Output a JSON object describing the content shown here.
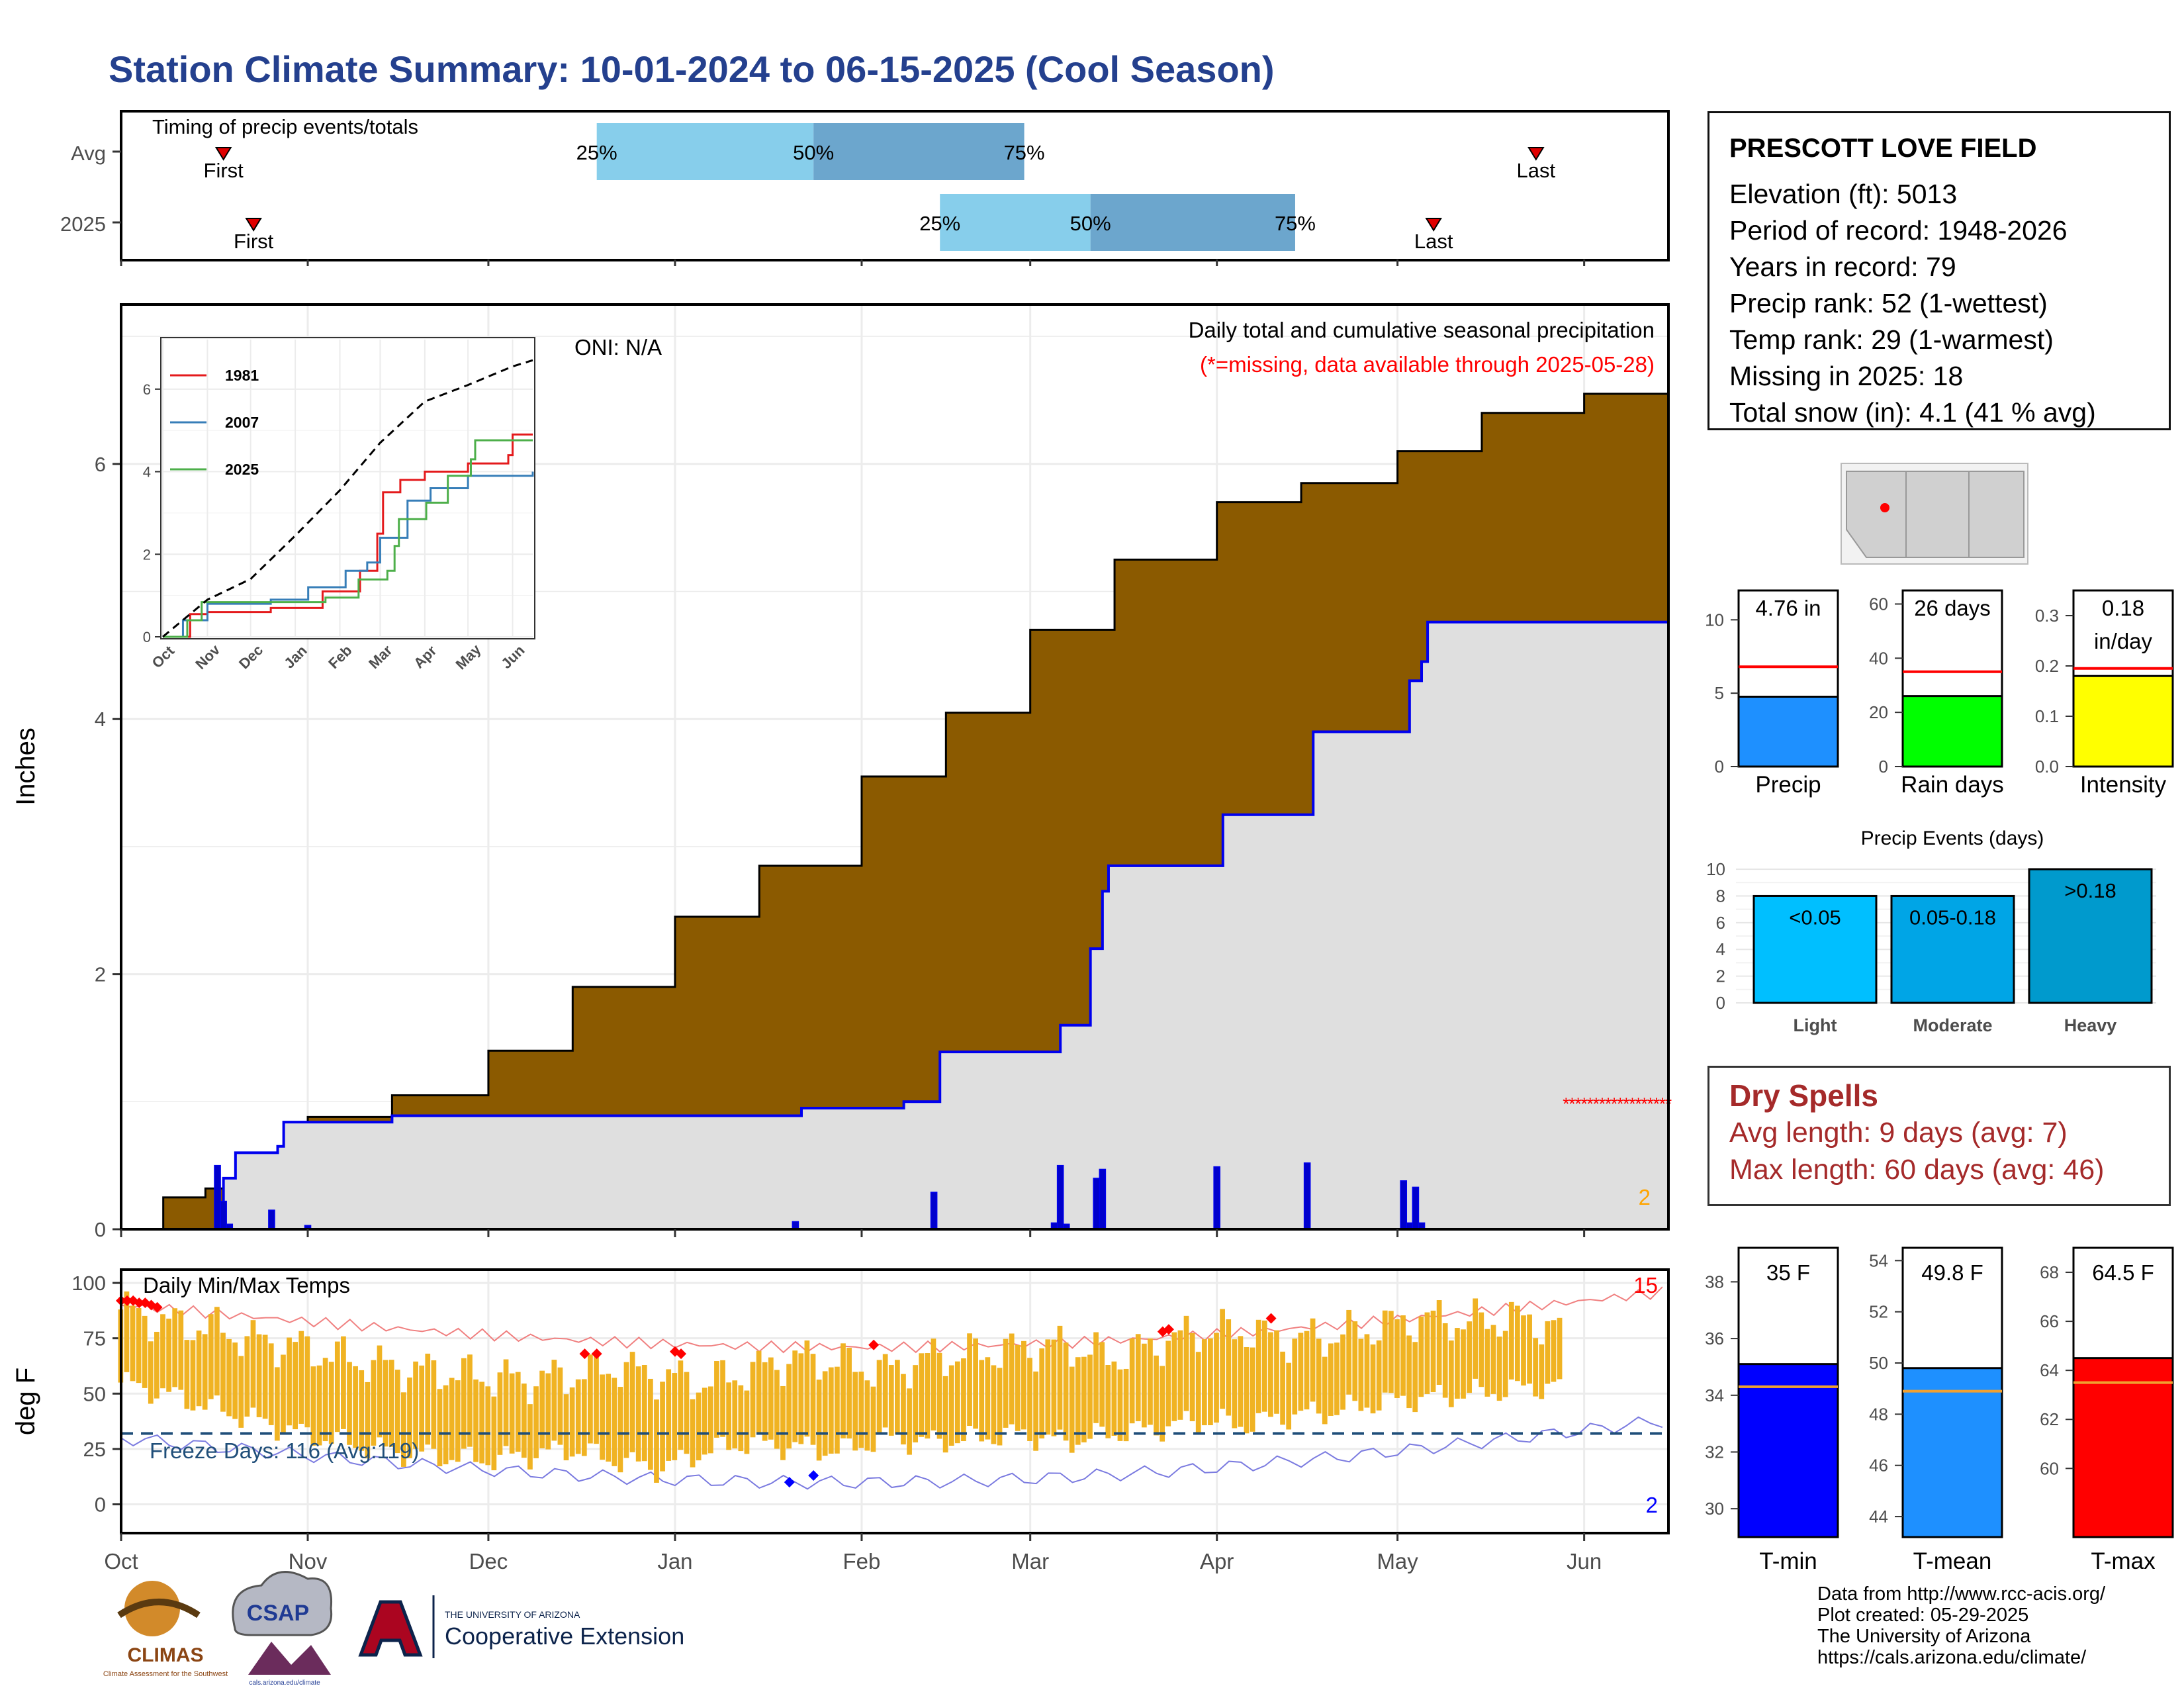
{
  "title": "Station Climate Summary: 10-01-2024 to 06-15-2025 (Cool Season)",
  "colors": {
    "title": "#24408E",
    "cumulative_fill": "#8B5A00",
    "current_fill": "#DFDFDF",
    "current_line": "#0000EE",
    "temp_bar": "#F0B323",
    "freeze_line": "#1F4E79",
    "dry_spell_text": "#A52A2A",
    "quartile_light": "#87CEEB",
    "quartile_dark": "#6CA6CD",
    "missing_marker": "#FF0000"
  },
  "timing_panel": {
    "label": "Timing of precip events/totals",
    "rows": [
      {
        "name": "Avg",
        "first_label": "First",
        "last_label": "Last",
        "first_date": "2024-10-18",
        "last_date": "2025-05-24",
        "q25": "2024-12-19",
        "q50": "2025-01-24",
        "q75": "2025-02-28",
        "q25_label": "25%",
        "q50_label": "50%",
        "q75_label": "75%"
      },
      {
        "name": "2025",
        "first_label": "First",
        "last_label": "Last",
        "first_date": "2024-10-23",
        "last_date": "2025-05-07",
        "q25": "2025-02-14",
        "q50": "2025-03-11",
        "q75": "2025-04-14",
        "q25_label": "25%",
        "q50_label": "50%",
        "q75_label": "75%"
      }
    ]
  },
  "precip_panel": {
    "ylabel": "Inches",
    "yticks": [
      "0",
      "2",
      "4",
      "6"
    ],
    "oni_label": "ONI: N/A",
    "caption": "Daily total and cumulative seasonal precipitation",
    "missing_note": "(*=missing, data available through 2025-05-28)",
    "corner_count": "2"
  },
  "inset": {
    "yticks": [
      "0",
      "2",
      "4",
      "6"
    ],
    "xticks": [
      "Oct",
      "Nov",
      "Dec",
      "Jan",
      "Feb",
      "Mar",
      "Apr",
      "May",
      "Jun"
    ],
    "legend": [
      {
        "name": "1981",
        "color": "#E41A1C"
      },
      {
        "name": "2007",
        "color": "#377EB8"
      },
      {
        "name": "2025",
        "color": "#4DAF4A"
      }
    ]
  },
  "temp_panel": {
    "ylabel": "deg F",
    "label": "Daily Min/Max Temps",
    "yticks": [
      "0",
      "25",
      "50",
      "75",
      "100"
    ],
    "freeze_label": "Freeze Days: 116 (Avg:119)",
    "max_record_count": "15",
    "min_record_count": "2"
  },
  "x_months": [
    "Oct",
    "Nov",
    "Dec",
    "Jan",
    "Feb",
    "Mar",
    "Apr",
    "May",
    "Jun"
  ],
  "station": {
    "name": "PRESCOTT LOVE FIELD",
    "lines": [
      "Elevation (ft): 5013",
      "Period of record: 1948-2026",
      "Years in record: 79",
      "Precip rank: 52 (1-wettest)",
      "Temp rank: 29 (1-warmest)",
      "Missing in 2025: 18",
      "Total snow (in): 4.1 (41 % avg)"
    ]
  },
  "mini_precip": [
    {
      "label": "Precip",
      "value_label": "4.76 in",
      "value": 4.76,
      "avg": 6.8,
      "max": 12,
      "ticks": [
        "0",
        "5",
        "10"
      ],
      "color": "#1E90FF"
    },
    {
      "label": "Rain days",
      "value_label": "26 days",
      "value": 26,
      "avg": 35,
      "max": 65,
      "ticks": [
        "0",
        "20",
        "40",
        "60"
      ],
      "color": "#00FF00"
    },
    {
      "label": "Intensity",
      "value_label": "0.18\nin/day",
      "value": 0.18,
      "avg": 0.195,
      "max": 0.35,
      "ticks": [
        "0.0",
        "0.1",
        "0.2",
        "0.3"
      ],
      "color": "#FFFF00"
    }
  ],
  "precip_events": {
    "title": "Precip Events (days)",
    "yticks": [
      "0",
      "2",
      "4",
      "6",
      "8",
      "10"
    ],
    "bars": [
      {
        "category": "Light",
        "range_label": "<0.05",
        "value": 8,
        "color": "#00BFFF"
      },
      {
        "category": "Moderate",
        "range_label": "0.05-0.18",
        "value": 8,
        "color": "#00A5E6"
      },
      {
        "category": "Heavy",
        "range_label": ">0.18",
        "value": 10,
        "color": "#009ACD"
      }
    ]
  },
  "dry_spells": {
    "title": "Dry Spells",
    "avg_line": "Avg length: 9 days (avg: 7)",
    "max_line": "Max length: 60 days (avg: 46)"
  },
  "mini_temps": [
    {
      "label": "T-min",
      "value_label": "35 F",
      "value": 35.1,
      "avg": 34.3,
      "min": 29,
      "max": 39.2,
      "ticks": [
        "30",
        "32",
        "34",
        "36",
        "38"
      ],
      "color": "#0000FF"
    },
    {
      "label": "T-mean",
      "value_label": "49.8 F",
      "value": 49.8,
      "avg": 48.9,
      "min": 43.2,
      "max": 54.5,
      "ticks": [
        "44",
        "46",
        "48",
        "50",
        "52",
        "54"
      ],
      "color": "#1E90FF"
    },
    {
      "label": "T-max",
      "value_label": "64.5 F",
      "value": 64.5,
      "avg": 63.5,
      "min": 57.2,
      "max": 69,
      "ticks": [
        "60",
        "62",
        "64",
        "66",
        "68"
      ],
      "color": "#FF0000"
    }
  ],
  "credits": [
    "Data from http://www.rcc-acis.org/",
    "Plot created: 05-29-2025",
    "The University of Arizona",
    "https://cals.arizona.edu/climate/"
  ],
  "logos": {
    "climas": "CLIMAS",
    "climas_sub": "Climate Assessment for the Southwest",
    "csap": "CSAP",
    "csap_sub": "cals.arizona.edu/climate",
    "ua_top": "THE UNIVERSITY OF ARIZONA",
    "ua_bottom": "Cooperative Extension"
  },
  "chart_data": [
    {
      "type": "area",
      "title": "Daily total and cumulative seasonal precipitation",
      "ylabel": "Inches",
      "ylim": [
        0,
        7.25
      ],
      "x_range": [
        "2024-10-01",
        "2025-06-15"
      ],
      "series": [
        {
          "name": "average cumulative",
          "x": [
            "2024-10-01",
            "2024-10-08",
            "2024-10-15",
            "2024-10-22",
            "2024-11-01",
            "2024-11-15",
            "2024-12-01",
            "2024-12-15",
            "2025-01-01",
            "2025-01-15",
            "2025-02-01",
            "2025-02-15",
            "2025-03-01",
            "2025-03-15",
            "2025-04-01",
            "2025-04-15",
            "2025-05-01",
            "2025-05-15",
            "2025-06-01",
            "2025-06-15"
          ],
          "y": [
            0.0,
            0.25,
            0.32,
            0.6,
            0.88,
            1.05,
            1.4,
            1.9,
            2.45,
            2.85,
            3.55,
            4.05,
            4.7,
            5.25,
            5.7,
            5.85,
            6.1,
            6.4,
            6.55,
            6.7
          ]
        },
        {
          "name": "2025 cumulative",
          "x": [
            "2024-10-01",
            "2024-10-17",
            "2024-10-18",
            "2024-10-20",
            "2024-10-27",
            "2024-10-28",
            "2024-11-15",
            "2025-01-21",
            "2025-01-22",
            "2025-02-08",
            "2025-02-14",
            "2025-03-05",
            "2025-03-06",
            "2025-03-10",
            "2025-03-11",
            "2025-03-13",
            "2025-03-14",
            "2025-04-01",
            "2025-04-02",
            "2025-04-16",
            "2025-04-17",
            "2025-05-02",
            "2025-05-03",
            "2025-05-05",
            "2025-05-06",
            "2025-05-28"
          ],
          "y": [
            0.0,
            0.0,
            0.4,
            0.6,
            0.65,
            0.84,
            0.89,
            0.89,
            0.95,
            1.0,
            1.39,
            1.39,
            1.6,
            1.6,
            2.2,
            2.65,
            2.85,
            2.85,
            3.25,
            3.25,
            3.9,
            3.9,
            4.3,
            4.45,
            4.76,
            4.76
          ]
        }
      ],
      "daily_bars": {
        "x": [
          "2024-10-17",
          "2024-10-18",
          "2024-10-19",
          "2024-10-26",
          "2024-11-01",
          "2025-01-21",
          "2025-02-13",
          "2025-03-05",
          "2025-03-06",
          "2025-03-07",
          "2025-03-12",
          "2025-03-13",
          "2025-04-01",
          "2025-04-16",
          "2025-05-02",
          "2025-05-03",
          "2025-05-04",
          "2025-05-05"
        ],
        "y": [
          0.5,
          0.22,
          0.04,
          0.15,
          0.03,
          0.06,
          0.29,
          0.05,
          0.5,
          0.04,
          0.4,
          0.47,
          0.49,
          0.52,
          0.38,
          0.05,
          0.33,
          0.05
        ]
      },
      "missing_range": [
        "2025-05-29",
        "2025-06-15"
      ],
      "missing_value": 1.0
    },
    {
      "type": "bar",
      "title": "Daily Min/Max Temps",
      "ylabel": "deg F",
      "ylim": [
        -13,
        106
      ],
      "freeze_line": 32,
      "x_range": [
        "2024-10-01",
        "2025-05-28"
      ],
      "max_temp_weekly": [
        88,
        82,
        80,
        74,
        71,
        66,
        62,
        60,
        58,
        56,
        58,
        62,
        58,
        55,
        60,
        66,
        64,
        60,
        66,
        68,
        70,
        72,
        66,
        72,
        78,
        78,
        74,
        76,
        80,
        84,
        82,
        84,
        80
      ],
      "min_temp_weekly": [
        55,
        50,
        44,
        38,
        32,
        28,
        24,
        22,
        20,
        22,
        25,
        20,
        16,
        24,
        28,
        26,
        24,
        30,
        28,
        30,
        32,
        28,
        32,
        34,
        38,
        36,
        40,
        42,
        46,
        48,
        50,
        52,
        54
      ],
      "record_max_dates": [
        "2024-10-01",
        "2024-10-02",
        "2024-10-03",
        "2024-10-04",
        "2024-10-05",
        "2024-10-06",
        "2024-10-07",
        "2024-12-17",
        "2024-12-19",
        "2025-01-01",
        "2025-01-02",
        "2025-02-03",
        "2025-03-23",
        "2025-03-24",
        "2025-04-10"
      ],
      "record_max_values": [
        92,
        92,
        92,
        91,
        91,
        90,
        89,
        68,
        68,
        69,
        68,
        72,
        78,
        79,
        84
      ],
      "record_min_dates": [
        "2025-01-20",
        "2025-01-24"
      ],
      "record_min_values": [
        10,
        13
      ]
    },
    {
      "type": "line",
      "title": "inset cumulative precipitation",
      "x_range": [
        "2024-10-01",
        "2025-06-15"
      ],
      "ylim": [
        0,
        7.2
      ],
      "series": [
        {
          "name": "1981",
          "x": [
            "2024-10-01",
            "2024-10-20",
            "2024-11-01",
            "2024-12-15",
            "2025-01-20",
            "2025-02-15",
            "2025-02-27",
            "2025-03-03",
            "2025-03-15",
            "2025-04-01",
            "2025-05-01",
            "2025-05-29",
            "2025-06-01",
            "2025-06-15"
          ],
          "y": [
            0,
            0.55,
            0.6,
            0.7,
            1.1,
            1.6,
            2.5,
            3.5,
            3.8,
            4.0,
            4.2,
            4.4,
            4.9,
            4.9
          ]
        },
        {
          "name": "2007",
          "x": [
            "2024-10-01",
            "2024-10-15",
            "2024-11-01",
            "2024-12-15",
            "2025-01-10",
            "2025-02-05",
            "2025-02-20",
            "2025-03-01",
            "2025-03-20",
            "2025-04-05",
            "2025-05-01",
            "2025-06-15"
          ],
          "y": [
            0,
            0.4,
            0.8,
            0.9,
            1.2,
            1.6,
            1.8,
            2.4,
            3.3,
            3.6,
            3.9,
            4.0
          ]
        },
        {
          "name": "2025",
          "x": [
            "2024-10-01",
            "2024-10-17",
            "2024-10-18",
            "2024-10-28",
            "2025-01-22",
            "2025-02-14",
            "2025-03-06",
            "2025-03-11",
            "2025-03-14",
            "2025-04-02",
            "2025-04-17",
            "2025-05-03",
            "2025-05-06",
            "2025-06-15"
          ],
          "y": [
            0,
            0,
            0.4,
            0.84,
            0.95,
            1.39,
            1.6,
            2.2,
            2.85,
            3.25,
            3.9,
            4.3,
            4.76,
            4.76
          ]
        },
        {
          "name": "average",
          "x": [
            "2024-10-01",
            "2024-11-01",
            "2024-12-01",
            "2025-01-01",
            "2025-02-01",
            "2025-03-01",
            "2025-04-01",
            "2025-05-01",
            "2025-06-01",
            "2025-06-15"
          ],
          "y": [
            0,
            0.9,
            1.4,
            2.45,
            3.55,
            4.7,
            5.7,
            6.1,
            6.55,
            6.7
          ]
        }
      ]
    }
  ]
}
